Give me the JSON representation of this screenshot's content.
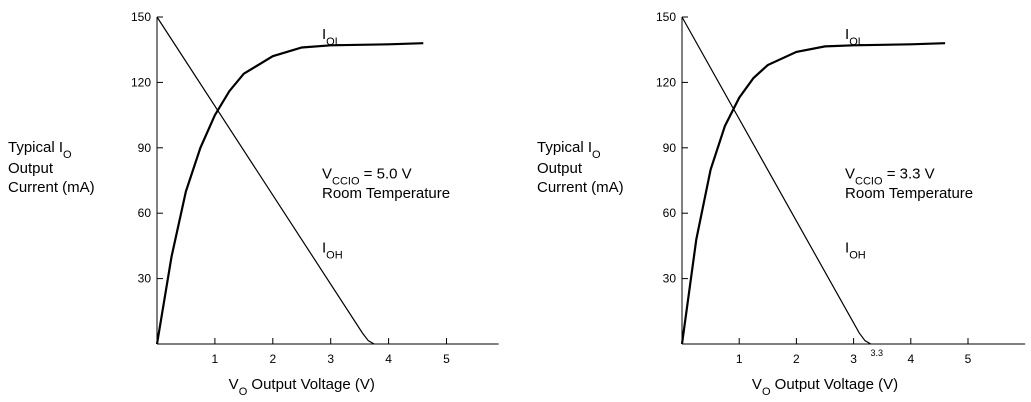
{
  "chart_data": [
    {
      "type": "line",
      "ylabel": {
        "text": "Typical I",
        "sub": "O",
        "line2": "Output",
        "line3": "Current (mA)"
      },
      "xlabel": {
        "text": "V",
        "sub": "O",
        "rest": " Output Voltage (V)"
      },
      "note": {
        "text": "V",
        "sub": "CCIO",
        "rest": " = 5.0 V",
        "line2": "Room Temperature"
      },
      "xlim": [
        0,
        5.9
      ],
      "ylim": [
        0,
        150
      ],
      "xticks": [
        1,
        2,
        3,
        4,
        5
      ],
      "yticks": [
        30,
        60,
        90,
        120,
        150
      ],
      "series": [
        {
          "name": "I",
          "sub": "OL",
          "color": "#000000",
          "x": [
            0,
            0.25,
            0.5,
            0.75,
            1,
            1.25,
            1.5,
            2,
            2.5,
            3,
            4,
            4.6
          ],
          "values": [
            0,
            40,
            70,
            90,
            105,
            116,
            124,
            132,
            136,
            137,
            137.5,
            138
          ]
        },
        {
          "name": "I",
          "sub": "OH",
          "color": "#000000",
          "x": [
            0,
            3.55,
            3.65,
            3.75
          ],
          "values": [
            150,
            5,
            1.5,
            0
          ]
        }
      ]
    },
    {
      "type": "line",
      "ylabel": {
        "text": "Typical I",
        "sub": "O",
        "line2": "Output",
        "line3": "Current (mA)"
      },
      "xlabel": {
        "text": "V",
        "sub": "O",
        "rest": " Output Voltage (V)"
      },
      "note": {
        "text": "V",
        "sub": "CCIO",
        "rest": " = 3.3 V",
        "line2": "Room Temperature"
      },
      "xlim": [
        0,
        6.0
      ],
      "ylim": [
        0,
        150
      ],
      "xticks": [
        1,
        2,
        3,
        4,
        5
      ],
      "xtick_minor": [
        3.3
      ],
      "yticks": [
        30,
        60,
        90,
        120,
        150
      ],
      "series": [
        {
          "name": "I",
          "sub": "OL",
          "color": "#000000",
          "x": [
            0,
            0.25,
            0.5,
            0.75,
            1,
            1.25,
            1.5,
            2,
            2.5,
            3,
            4,
            4.6
          ],
          "values": [
            0,
            48,
            80,
            100,
            113,
            122,
            128,
            134,
            136.5,
            137,
            137.5,
            138
          ]
        },
        {
          "name": "I",
          "sub": "OH",
          "color": "#000000",
          "x": [
            0,
            3.1,
            3.2,
            3.3
          ],
          "values": [
            150,
            5,
            1.5,
            0
          ]
        }
      ]
    }
  ]
}
